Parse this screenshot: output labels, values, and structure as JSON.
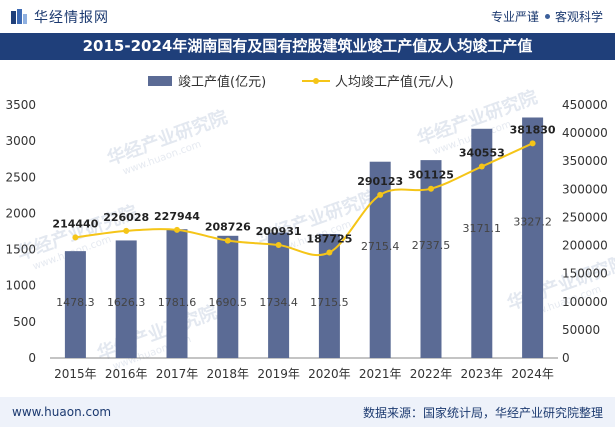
{
  "header": {
    "brand": "华经情报网",
    "tag1": "专业严谨",
    "tag2": "客观科学"
  },
  "title": "2015-2024年湖南国有及国有控股建筑业竣工产值及人均竣工产值",
  "watermark": "华经产业研究院",
  "watermark_url": "www.huaon.com",
  "footer": {
    "url": "www.huaon.com",
    "source": "数据来源：国家统计局，华经产业研究院整理"
  },
  "colors": {
    "bar": "#5b6b95",
    "line": "#f5c518",
    "title_bg": "#1f3f7a"
  },
  "chart_data": {
    "type": "bar+line",
    "title": "2015-2024年湖南国有及国有控股建筑业竣工产值及人均竣工产值",
    "categories": [
      "2015年",
      "2016年",
      "2017年",
      "2018年",
      "2019年",
      "2020年",
      "2021年",
      "2022年",
      "2023年",
      "2024年"
    ],
    "series": [
      {
        "name": "竣工产值(亿元)",
        "kind": "bar",
        "axis": "left",
        "values": [
          1478.3,
          1626.3,
          1781.6,
          1690.5,
          1734.4,
          1715.5,
          2715.4,
          2737.5,
          3171.1,
          3327.2
        ]
      },
      {
        "name": "人均竣工产值(元/人)",
        "kind": "line",
        "axis": "right",
        "values": [
          214440,
          226028,
          227944,
          208726,
          200931,
          187725,
          290123,
          301125,
          340553,
          381830
        ]
      }
    ],
    "yleft": {
      "min": 0,
      "max": 3500,
      "ticks": [
        0,
        500,
        1000,
        1500,
        2000,
        2500,
        3000,
        3500
      ]
    },
    "yright": {
      "min": 0,
      "max": 450000,
      "ticks": [
        0,
        50000,
        100000,
        150000,
        200000,
        250000,
        300000,
        350000,
        400000,
        450000
      ]
    },
    "legend": "top-center"
  }
}
